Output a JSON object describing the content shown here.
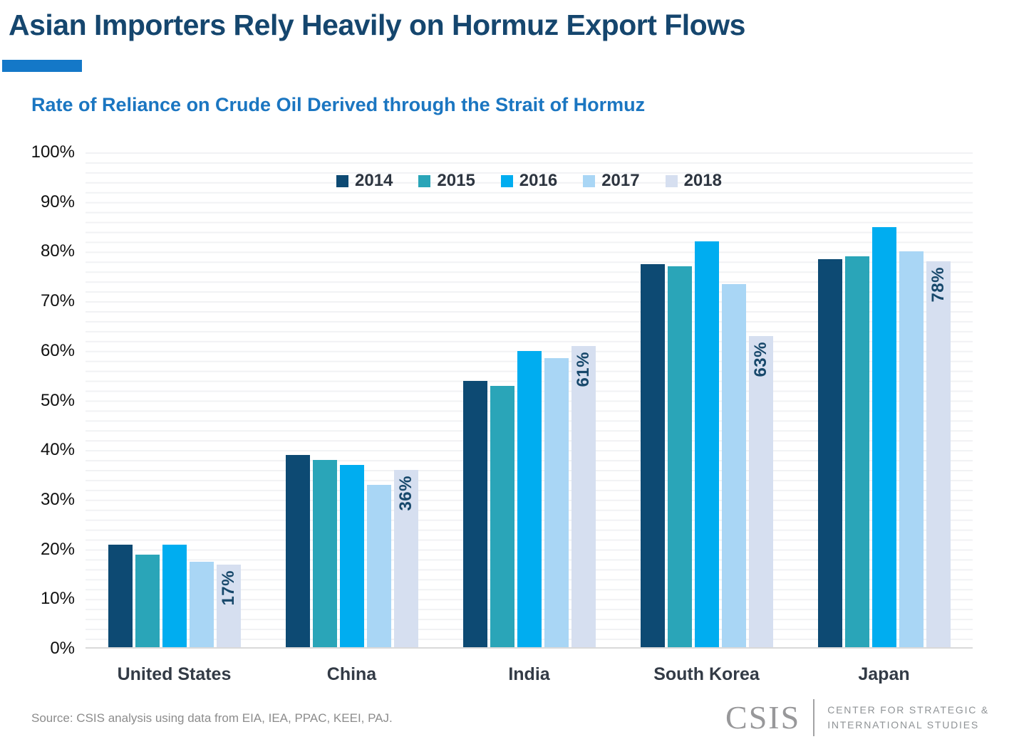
{
  "header": {
    "title": "Asian Importers Rely Heavily on Hormuz Export Flows",
    "subtitle": "Rate of Reliance on Crude Oil Derived through the Strait of Hormuz"
  },
  "colors": {
    "title_navy": "#15466e",
    "subtitle_blue": "#1b76c1",
    "accent_bar_blue": "#1478c8",
    "value_label_navy": "#17486b",
    "axis_text": "#101010",
    "gridline": "#f1f2f4",
    "axis_line": "#d9d9d9"
  },
  "chart_data": {
    "type": "bar",
    "title": "Rate of Reliance on Crude Oil Derived through the Strait of Hormuz",
    "categories": [
      "United States",
      "China",
      "India",
      "South Korea",
      "Japan"
    ],
    "series": [
      {
        "name": "2014",
        "color": "#0d4a73",
        "values": [
          21,
          39,
          54,
          77.5,
          78.5
        ]
      },
      {
        "name": "2015",
        "color": "#2aa5b8",
        "values": [
          19,
          38,
          53,
          77,
          79
        ]
      },
      {
        "name": "2016",
        "color": "#00adf0",
        "values": [
          21,
          37,
          60,
          82,
          85
        ]
      },
      {
        "name": "2017",
        "color": "#a9d6f5",
        "values": [
          17.5,
          33,
          58.5,
          73.5,
          80
        ]
      },
      {
        "name": "2018",
        "color": "#d6dff0",
        "values": [
          17,
          36,
          61,
          63,
          78
        ],
        "data_labels": [
          "17%",
          "36%",
          "61%",
          "63%",
          "78%"
        ]
      }
    ],
    "xlabel": "",
    "ylabel": "",
    "ylim": [
      0,
      100
    ],
    "yticks": [
      "0%",
      "10%",
      "20%",
      "30%",
      "40%",
      "50%",
      "60%",
      "70%",
      "80%",
      "90%",
      "100%"
    ],
    "grid": "horizontal minor gridlines every 2%",
    "legend_position": "top-center"
  },
  "footer": {
    "source": "Source: CSIS analysis using data from EIA, IEA, PPAC, KEEI, PAJ.",
    "logo": {
      "wordmark": "CSIS",
      "caption_line1": "CENTER FOR STRATEGIC &",
      "caption_line2": "INTERNATIONAL STUDIES"
    }
  }
}
